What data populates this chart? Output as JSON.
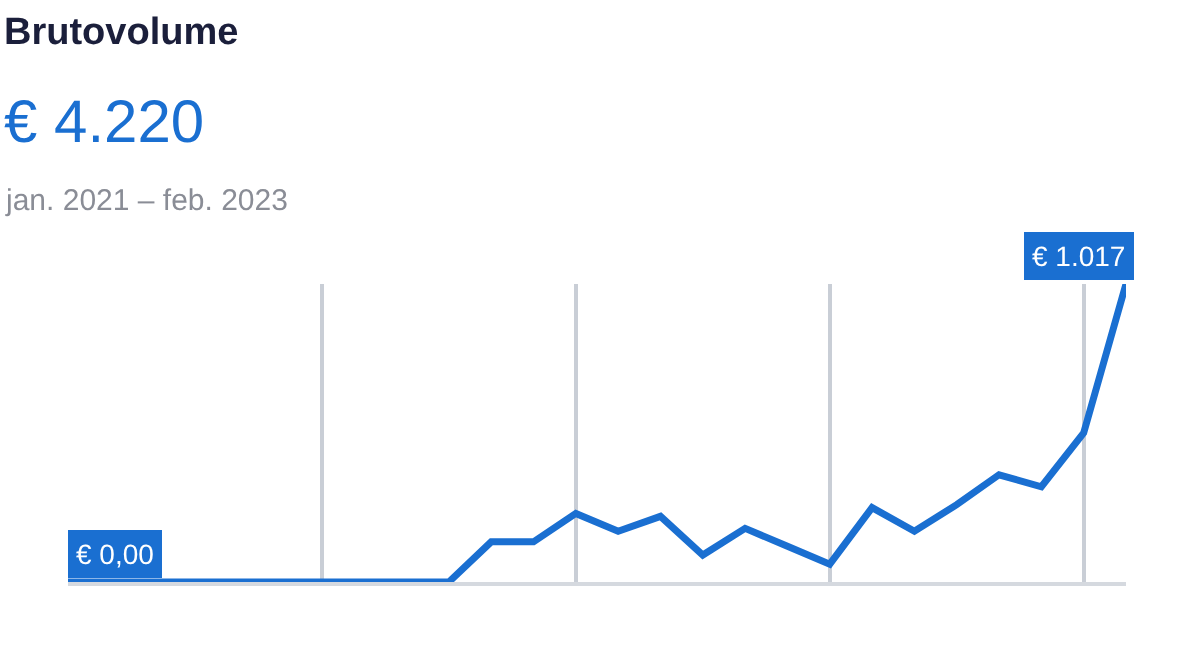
{
  "chart_data": {
    "type": "line",
    "title": "Brutovolume",
    "subtitle": "€ 4.220",
    "annotations": [
      "jan. 2021 – feb. 2023"
    ],
    "categories": [
      null,
      null,
      null,
      null,
      null,
      null,
      null,
      null,
      null,
      null,
      null,
      null,
      null,
      null,
      null,
      null,
      null,
      null,
      null,
      null,
      null,
      null,
      null,
      null,
      null,
      null
    ],
    "ylim": [
      0,
      1017
    ],
    "grid": "x",
    "legend": false,
    "marker": "none",
    "line_style": "solid",
    "series": [
      {
        "color": "#1a6fd1",
        "values": [
          0,
          0,
          0,
          0,
          0,
          0,
          0,
          0,
          0,
          0,
          137,
          137,
          234,
          173,
          224,
          92,
          183,
          122,
          61,
          254,
          173,
          264,
          366,
          325,
          509,
          1017
        ],
        "value_labels": [
          "€ 0,00",
          null,
          null,
          null,
          null,
          null,
          null,
          null,
          null,
          null,
          null,
          null,
          null,
          null,
          null,
          null,
          null,
          null,
          null,
          null,
          null,
          null,
          null,
          null,
          null,
          "€ 1.017"
        ]
      }
    ]
  }
}
